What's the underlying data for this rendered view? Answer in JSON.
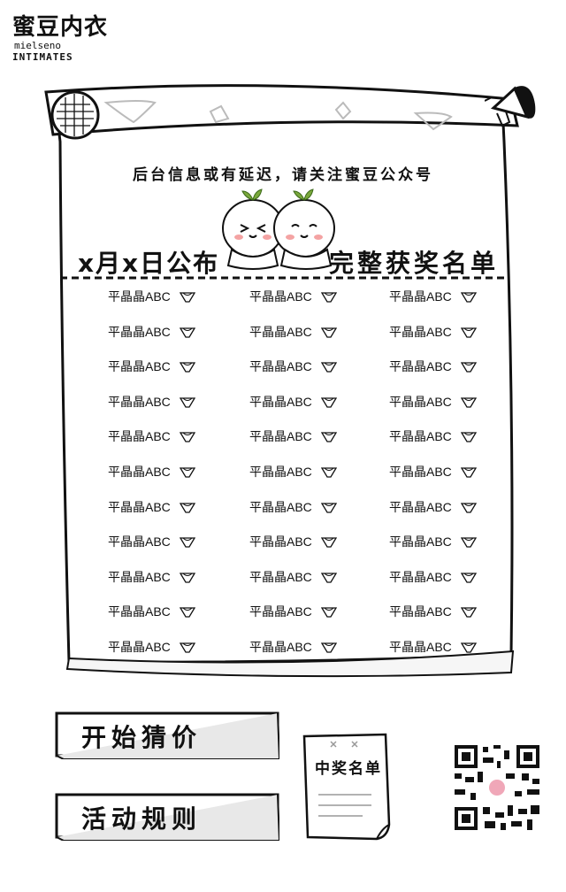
{
  "brand": {
    "name_cn": "蜜豆内衣",
    "name_en": "mielseno",
    "sub": "INTIMATES"
  },
  "notice": "后台信息或有延迟，请关注蜜豆公众号",
  "title": {
    "left": "x月x日公布",
    "right": "完整获奖名单"
  },
  "winners_grid": {
    "columns": 3,
    "rows": 11,
    "entry_label": "平晶晶ABC",
    "entry_icon": "underwear-icon"
  },
  "buttons": {
    "start_bidding": "开始猜价",
    "rules": "活动规则",
    "winner_list": "中奖名单"
  },
  "icons": {
    "scroll": "paper-scroll-icon",
    "megaphone": "megaphone-icon",
    "mascot": "bean-mascot-icon",
    "qr": "qr-code-icon"
  }
}
